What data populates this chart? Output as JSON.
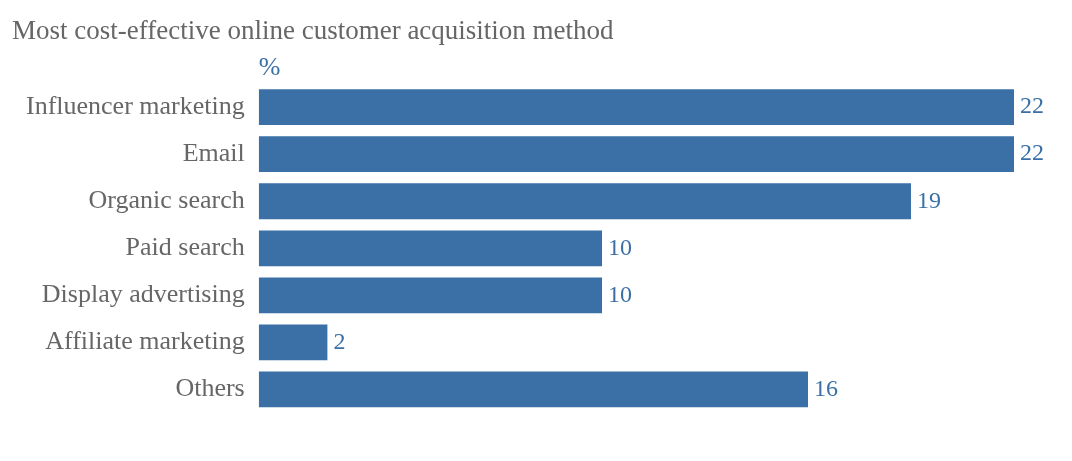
{
  "chart_data": {
    "type": "bar",
    "orientation": "horizontal",
    "title": "Most cost-effective online customer acquisition method",
    "xlabel": "%",
    "categories": [
      "Influencer marketing",
      "Email",
      "Organic search",
      "Paid search",
      "Display advertising",
      "Affiliate marketing",
      "Others"
    ],
    "values": [
      22,
      22,
      19,
      10,
      10,
      2,
      16
    ],
    "color": "#3a70a6",
    "xlim": [
      0,
      22
    ],
    "data_labels": true,
    "grid": false,
    "legend": false,
    "tick_labels": "y"
  }
}
